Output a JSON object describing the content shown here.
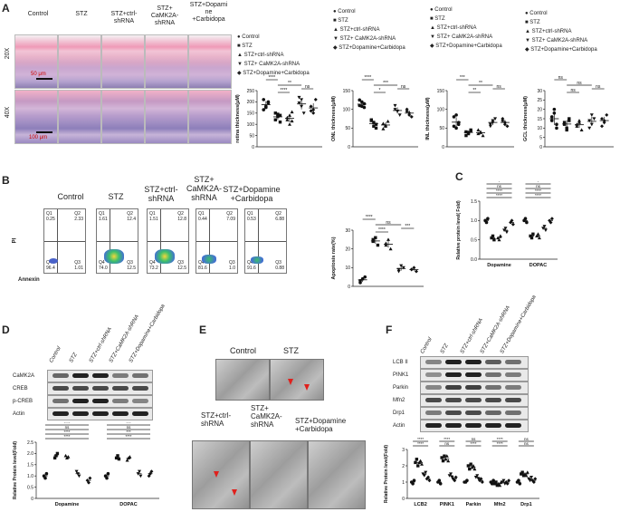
{
  "panel_labels": {
    "A": "A",
    "B": "B",
    "C": "C",
    "D": "D",
    "E": "E",
    "F": "F"
  },
  "groups": [
    "Control",
    "STZ",
    "STZ+ctrl-shRNA",
    "STZ+ CaMK2A-shRNA",
    "STZ+Dopamine+Carbidopa"
  ],
  "panelA": {
    "col_headers": [
      "Control",
      "STZ",
      "STZ+ctrl-\nshRNA",
      "STZ+\nCaMK2A-\nshRNA",
      "STZ+Dopami\nne\n+Carbidopa"
    ],
    "row_labels": [
      "20X",
      "40X"
    ],
    "scale_top": "50 μm",
    "scale_bottom": "100 μm",
    "legend": [
      "Control",
      "STZ",
      "STZ+ctrl-shRNA",
      "STZ+ CaMK2A-shRNA",
      "STZ+Dopamine+Carbidopa"
    ],
    "legend2": [
      "Control",
      "STZ",
      "STZ+ctrl-shRNA",
      "STZ+ CaMK2A-shRNA",
      "STZ+Dopamine+Carbidopa"
    ],
    "legend3": [
      "Control",
      "STZ",
      "STZ+ctrl-shRNA",
      "STZ+ CaMK2A-shRNA",
      "STZ+Dopamine+Carbidopa"
    ],
    "legend4": [
      "Control",
      "STZ",
      "STZ+ctrl-shRNA",
      "STZ+ CaMK2A-shRNA",
      "STZ+Dopamine+Carbidopa"
    ]
  },
  "panelB": {
    "col_headers": [
      "Control",
      "STZ",
      "STZ+ctrl-\nshRNA",
      "STZ+\nCaMK2A-\nshRNA",
      "STZ+Dopamine\n+Carbidopa"
    ],
    "y_axis": "PI",
    "x_axis": "Annexin",
    "quadrants": [
      {
        "q1": "Q1\n0.25",
        "q2": "Q2\n2.33",
        "q3": "Q3\n1.01",
        "q4": "Q4\n96.4"
      },
      {
        "q1": "Q1\n1.61",
        "q2": "Q2\n12.4",
        "q3": "Q3\n12.5",
        "q4": "Q4\n74.0"
      },
      {
        "q1": "Q1\n1.51",
        "q2": "Q2\n12.8",
        "q3": "Q3\n12.5",
        "q4": "Q4\n73.2"
      },
      {
        "q1": "Q1\n0.44",
        "q2": "Q2\n7.09",
        "q3": "Q3\n1.0",
        "q4": "Q4\n81.6"
      },
      {
        "q1": "Q1\n0.53",
        "q2": "Q2\n6.88",
        "q3": "Q3\n0.88",
        "q4": "Q4\n91.6"
      }
    ]
  },
  "panelD": {
    "lanes": [
      "Control",
      "STZ",
      "STZ+ctrl-shRNA",
      "STZ+CaMK2A-shRNA",
      "STZ+Dopamine+Carbidopa"
    ],
    "blots": [
      "CaMK2A",
      "CREB",
      "p-CREB",
      "Actin"
    ]
  },
  "panelE": {
    "top_labels": [
      "Control",
      "STZ"
    ],
    "bottom_labels": [
      "STZ+ctrl-\nshRNA",
      "STZ+\nCaMK2A-\nshRNA",
      "STZ+Dopamine\n+Carbidopa"
    ]
  },
  "panelF": {
    "lanes": [
      "Control",
      "STZ",
      "STZ+ctrl-shRNA",
      "STZ+CaMK2A-shRNA",
      "STZ+Dopamine+Carbidopa"
    ],
    "blots": [
      "LCB II",
      "PINK1",
      "Parkin",
      "Mfn2",
      "Drp1",
      "Actin"
    ]
  },
  "chart_data": [
    {
      "type": "scatter",
      "id": "retina",
      "ylabel": "retina thickness(μM)",
      "ylim": [
        0,
        250
      ],
      "yticks": [
        "0",
        "50",
        "100",
        "150",
        "200",
        "250"
      ],
      "annotations": [
        "****",
        "**",
        "****",
        "ns"
      ],
      "series": [
        {
          "values": [
            210,
            175,
            195,
            165,
            180,
            200
          ]
        },
        {
          "values": [
            120,
            135,
            140,
            150,
            145,
            110
          ]
        },
        {
          "values": [
            120,
            140,
            155,
            130,
            100,
            115
          ]
        },
        {
          "values": [
            195,
            210,
            150,
            220,
            180
          ]
        },
        {
          "values": [
            160,
            150,
            210,
            180,
            165
          ]
        }
      ]
    },
    {
      "type": "scatter",
      "id": "onl",
      "ylabel": "ONL thickness(μM)",
      "ylim": [
        0,
        150
      ],
      "yticks": [
        "0",
        "50",
        "100",
        "150"
      ],
      "annotations": [
        "****",
        "***",
        "*",
        "ns"
      ],
      "series": [
        {
          "values": [
            125,
            120,
            115,
            110,
            108,
            105
          ]
        },
        {
          "values": [
            70,
            65,
            60,
            72,
            55,
            50
          ]
        },
        {
          "values": [
            62,
            58,
            68,
            48,
            55
          ]
        },
        {
          "values": [
            110,
            95,
            85,
            100,
            95
          ]
        },
        {
          "values": [
            95,
            90,
            80,
            100,
            85
          ]
        }
      ]
    },
    {
      "type": "scatter",
      "id": "inl",
      "ylabel": "INL thickness(μM)",
      "ylim": [
        0,
        150
      ],
      "yticks": [
        "0",
        "50",
        "100",
        "150"
      ],
      "annotations": [
        "***",
        "**",
        "**",
        "ns"
      ],
      "series": [
        {
          "values": [
            80,
            85,
            60,
            55,
            50,
            65
          ]
        },
        {
          "values": [
            40,
            35,
            45,
            30,
            38,
            42
          ]
        },
        {
          "values": [
            35,
            40,
            30,
            45,
            38
          ]
        },
        {
          "values": [
            60,
            70,
            75,
            55,
            65
          ]
        },
        {
          "values": [
            70,
            60,
            55,
            75,
            65
          ]
        }
      ]
    },
    {
      "type": "scatter",
      "id": "gcl",
      "ylabel": "GCL thickness(μM)",
      "ylim": [
        0,
        30
      ],
      "yticks": [
        "0",
        "5",
        "10",
        "15",
        "20",
        "25",
        "30"
      ],
      "annotations": [
        "ns",
        "ns",
        "ns",
        "ns"
      ],
      "series": [
        {
          "values": [
            16,
            20,
            10,
            14,
            18,
            12
          ]
        },
        {
          "values": [
            12,
            10,
            15,
            13,
            9,
            14
          ]
        },
        {
          "values": [
            11,
            13,
            9,
            12,
            14
          ]
        },
        {
          "values": [
            14,
            12,
            15,
            10,
            17
          ]
        },
        {
          "values": [
            15,
            13,
            17,
            11,
            14
          ]
        }
      ]
    },
    {
      "type": "scatter",
      "id": "apoptosis",
      "ylabel": "Apoptosis rate(%)",
      "ylim": [
        0,
        30
      ],
      "yticks": [
        "0",
        "10",
        "20",
        "30"
      ],
      "annotations": [
        "****",
        "ns",
        "****",
        "***"
      ],
      "series": [
        {
          "values": [
            3,
            4,
            5,
            2
          ]
        },
        {
          "values": [
            24,
            26,
            22,
            25
          ]
        },
        {
          "values": [
            22,
            25,
            20,
            23
          ]
        },
        {
          "values": [
            9,
            11,
            10,
            8
          ]
        },
        {
          "values": [
            9,
            10,
            8,
            9
          ]
        }
      ]
    },
    {
      "type": "scatter",
      "id": "panelC",
      "ylabel": "Relative protein level( Fold)",
      "categories": [
        "Dopamine",
        "DOPAC"
      ],
      "ylim": [
        0,
        1.5
      ],
      "yticks": [
        "0.0",
        "0.5",
        "1.0",
        "1.5"
      ],
      "annotations": [
        "****",
        "****",
        "ns",
        "*",
        "****",
        "****",
        "ns",
        "*"
      ],
      "groups": [
        {
          "category": "Dopamine",
          "series": [
            [
              1.0,
              0.95,
              1.05
            ],
            [
              0.55,
              0.6,
              0.5
            ],
            [
              0.55,
              0.5,
              0.6
            ],
            [
              0.75,
              0.8,
              0.7
            ],
            [
              0.95,
              1.0,
              0.9
            ]
          ]
        },
        {
          "category": "DOPAC",
          "series": [
            [
              1.0,
              1.05,
              0.95
            ],
            [
              0.6,
              0.55,
              0.65
            ],
            [
              0.6,
              0.65,
              0.55
            ],
            [
              0.8,
              0.85,
              0.75
            ],
            [
              1.0,
              0.95,
              1.05
            ]
          ]
        }
      ]
    },
    {
      "type": "scatter",
      "id": "panelD",
      "ylabel": "Relative Protein level(Fold)",
      "categories": [
        "Dopamine",
        "DOPAC"
      ],
      "ylim": [
        0,
        2.5
      ],
      "yticks": [
        "0",
        "0.5",
        "1.0",
        "1.5",
        "2.0",
        "2.5"
      ],
      "annotations": [
        "****",
        "****",
        "ns",
        "****",
        "****",
        "***",
        "ns",
        "***"
      ],
      "groups": [
        {
          "category": "Dopamine",
          "series": [
            [
              1.0,
              0.9,
              1.1
            ],
            [
              1.8,
              1.9,
              2.0
            ],
            [
              1.9,
              1.8,
              1.85
            ],
            [
              1.2,
              1.1,
              1.0
            ],
            [
              0.8,
              0.7,
              0.9
            ]
          ]
        },
        {
          "category": "DOPAC",
          "series": [
            [
              1.0,
              0.9,
              1.1
            ],
            [
              1.8,
              1.9,
              1.75
            ],
            [
              1.7,
              1.8,
              1.85
            ],
            [
              1.1,
              1.2,
              1.0
            ],
            [
              1.0,
              1.1,
              1.2
            ]
          ]
        }
      ]
    },
    {
      "type": "scatter",
      "id": "panelF",
      "ylabel": "Relative Protein level(Fold)",
      "categories": [
        "LCB2",
        "PINK1",
        "Parkin",
        "Mfn2",
        "Drp1"
      ],
      "ylim": [
        0,
        3
      ],
      "yticks": [
        "0",
        "1",
        "2",
        "3"
      ],
      "annotations": [
        "****",
        "****",
        "ns",
        "****",
        "****",
        "ns",
        "****",
        "****",
        "ns",
        "ns",
        "*",
        "ns"
      ],
      "groups": [
        {
          "category": "LCB2",
          "series": [
            [
              1.0,
              0.9,
              1.1
            ],
            [
              2.2,
              2.4,
              2.0
            ],
            [
              2.2,
              2.3,
              2.1
            ],
            [
              1.5,
              1.4,
              1.6
            ],
            [
              1.2,
              1.3,
              1.1
            ]
          ]
        },
        {
          "category": "PINK1",
          "series": [
            [
              1.0,
              1.1,
              0.9
            ],
            [
              2.5,
              2.3,
              2.6
            ],
            [
              2.4,
              2.6,
              2.3
            ],
            [
              1.4,
              1.5,
              1.3
            ],
            [
              1.2,
              1.1,
              1.3
            ]
          ]
        },
        {
          "category": "Parkin",
          "series": [
            [
              1.0,
              1.0,
              1.1
            ],
            [
              2.0,
              1.8,
              2.1
            ],
            [
              1.9,
              2.0,
              1.8
            ],
            [
              1.3,
              1.4,
              1.2
            ],
            [
              1.1,
              1.2,
              1.0
            ]
          ]
        },
        {
          "category": "Mfn2",
          "series": [
            [
              1.0,
              0.9,
              1.1
            ],
            [
              0.9,
              1.0,
              0.8
            ],
            [
              0.9,
              0.8,
              1.0
            ],
            [
              1.0,
              1.1,
              0.9
            ],
            [
              1.0,
              0.9,
              1.1
            ]
          ]
        },
        {
          "category": "Drp1",
          "series": [
            [
              1.0,
              1.1,
              0.9
            ],
            [
              1.5,
              1.6,
              1.4
            ],
            [
              1.5,
              1.4,
              1.6
            ],
            [
              1.2,
              1.1,
              1.3
            ],
            [
              1.1,
              1.0,
              1.2
            ]
          ]
        }
      ]
    }
  ]
}
